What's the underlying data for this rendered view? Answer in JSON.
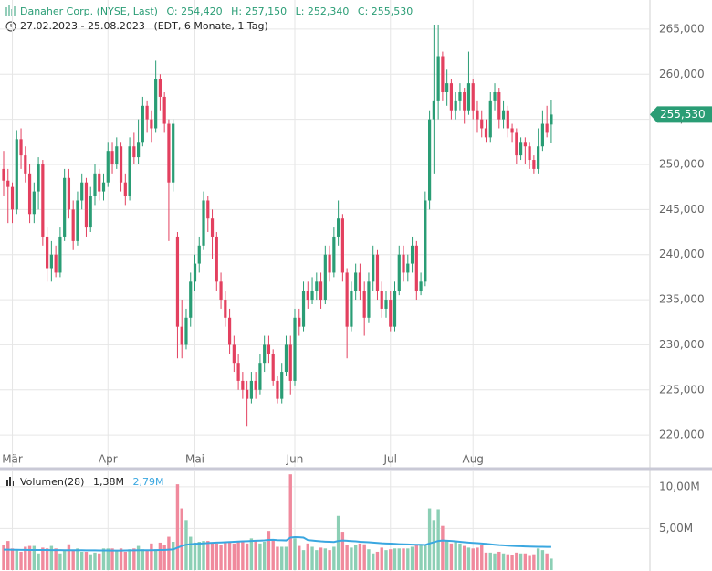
{
  "header": {
    "symbol": "Danaher Corp. (NYSE, Last)",
    "open": "O: 254,420",
    "high": "H: 257,150",
    "low": "L: 252,340",
    "close": "C: 255,530",
    "range": "27.02.2023 - 25.08.2023",
    "info": "(EDT, 6 Monate, 1 Tag)"
  },
  "chart_data": [
    {
      "type": "candlestick",
      "up_color": "#2a9d75",
      "down_color": "#e3405f",
      "grid": true,
      "xlim": [
        -0.84,
        148.7
      ],
      "ylim": [
        216.47,
        268.23
      ],
      "xticks": [
        {
          "value": 2,
          "label": "Mär"
        },
        {
          "value": 24,
          "label": "Apr"
        },
        {
          "value": 44,
          "label": "Mai"
        },
        {
          "value": 67,
          "label": "Jun"
        },
        {
          "value": 89,
          "label": "Jul"
        },
        {
          "value": 108,
          "label": "Aug"
        }
      ],
      "yticks": [
        {
          "value": 220,
          "label": "220,000"
        },
        {
          "value": 225,
          "label": "225,000"
        },
        {
          "value": 230,
          "label": "230,000"
        },
        {
          "value": 235,
          "label": "235,000"
        },
        {
          "value": 240,
          "label": "240,000"
        },
        {
          "value": 245,
          "label": "245,000"
        },
        {
          "value": 250,
          "label": "250,000"
        },
        {
          "value": 255,
          "label": "255,000"
        },
        {
          "value": 260,
          "label": "260,000"
        },
        {
          "value": 265,
          "label": "265,000"
        }
      ],
      "last": {
        "value": 255.53,
        "label": "255,530"
      },
      "candles": [
        [
          249.5,
          251.5,
          246.5,
          248.2
        ],
        [
          248.2,
          249.5,
          243.5,
          247.5
        ],
        [
          247.5,
          248,
          243.5,
          245
        ],
        [
          245,
          253.8,
          244.5,
          252.8
        ],
        [
          252.8,
          254,
          249.5,
          251
        ],
        [
          251,
          252,
          248,
          249
        ],
        [
          249,
          250,
          243.5,
          244.5
        ],
        [
          244.5,
          248,
          243.5,
          247
        ],
        [
          247,
          250.8,
          245,
          250
        ],
        [
          250,
          250.5,
          241,
          242
        ],
        [
          242,
          243,
          237,
          238.5
        ],
        [
          238.5,
          241.5,
          237,
          240
        ],
        [
          240,
          241,
          237.5,
          238
        ],
        [
          238,
          243,
          237.5,
          242
        ],
        [
          242,
          249.5,
          241.5,
          248.5
        ],
        [
          248.5,
          249.5,
          244,
          245
        ],
        [
          245,
          246,
          240.5,
          241.5
        ],
        [
          241.5,
          247,
          241,
          246
        ],
        [
          246,
          249,
          245,
          248
        ],
        [
          248,
          248.5,
          242,
          243
        ],
        [
          243,
          247.5,
          242.5,
          246.5
        ],
        [
          246.5,
          250,
          245.5,
          249
        ],
        [
          249,
          249.5,
          246,
          247
        ],
        [
          247,
          249,
          246,
          248
        ],
        [
          248,
          252.5,
          247.5,
          251.5
        ],
        [
          251.5,
          252.5,
          249,
          250
        ],
        [
          250,
          253,
          249.5,
          252
        ],
        [
          252,
          252.5,
          247,
          248
        ],
        [
          248,
          249,
          245.5,
          246.5
        ],
        [
          246.5,
          253,
          246,
          252
        ],
        [
          252,
          253.5,
          250,
          250.8
        ],
        [
          250.8,
          255,
          250,
          252.5
        ],
        [
          252.5,
          257.5,
          252,
          256.5
        ],
        [
          256.5,
          257,
          253.5,
          255
        ],
        [
          255,
          256,
          252.5,
          254
        ],
        [
          254,
          261.5,
          253.5,
          259.5
        ],
        [
          259.5,
          260,
          256,
          257.5
        ],
        [
          257.5,
          258,
          253.5,
          254.5
        ],
        [
          254.5,
          255,
          241.5,
          248
        ],
        [
          248,
          255,
          247,
          254.5
        ],
        [
          242,
          242.5,
          228.5,
          232
        ],
        [
          232,
          235,
          228.5,
          230
        ],
        [
          230,
          234,
          229.5,
          233
        ],
        [
          233,
          238,
          232,
          237
        ],
        [
          237,
          240,
          236,
          239
        ],
        [
          239,
          242,
          238,
          241
        ],
        [
          241,
          247,
          240.5,
          246
        ],
        [
          246,
          246.5,
          242.5,
          244
        ],
        [
          244,
          245,
          239.5,
          242
        ],
        [
          242,
          242.5,
          236,
          237
        ],
        [
          237,
          238,
          234,
          235
        ],
        [
          235,
          236,
          232,
          233
        ],
        [
          233,
          234,
          229,
          230
        ],
        [
          230,
          231,
          227,
          228
        ],
        [
          228,
          229,
          225,
          226
        ],
        [
          226,
          227,
          224,
          225
        ],
        [
          225,
          226,
          221,
          224
        ],
        [
          224,
          227,
          223.5,
          226
        ],
        [
          226,
          227,
          224,
          225
        ],
        [
          225,
          229,
          224.5,
          228
        ],
        [
          228,
          231,
          227,
          230
        ],
        [
          230,
          231,
          228,
          229
        ],
        [
          229,
          229.5,
          225.5,
          226
        ],
        [
          226,
          226.5,
          223.5,
          224
        ],
        [
          224,
          228,
          223.5,
          227
        ],
        [
          227,
          231,
          226.5,
          230
        ],
        [
          230,
          231,
          224.5,
          226
        ],
        [
          226,
          234,
          225.5,
          233
        ],
        [
          233,
          234,
          231,
          232
        ],
        [
          232,
          237,
          231.5,
          236
        ],
        [
          236,
          237,
          234,
          235
        ],
        [
          235,
          237.5,
          234.5,
          236
        ],
        [
          236,
          238,
          235,
          237
        ],
        [
          237,
          238,
          234,
          235
        ],
        [
          235,
          241,
          234.5,
          240
        ],
        [
          240,
          241,
          237,
          238
        ],
        [
          238,
          243,
          237.5,
          242
        ],
        [
          242,
          246,
          241,
          244
        ],
        [
          244,
          244.5,
          237,
          238
        ],
        [
          238,
          238.5,
          228.5,
          232
        ],
        [
          232,
          237,
          231.5,
          236
        ],
        [
          236,
          239,
          235,
          238
        ],
        [
          238,
          239,
          235,
          236
        ],
        [
          236,
          237,
          231,
          233
        ],
        [
          233,
          238,
          232.5,
          237
        ],
        [
          237,
          241,
          236,
          240
        ],
        [
          240,
          240.5,
          235,
          236
        ],
        [
          236,
          237,
          233,
          234
        ],
        [
          234,
          236,
          233,
          235
        ],
        [
          235,
          236,
          231.5,
          232
        ],
        [
          232,
          237,
          231.5,
          236
        ],
        [
          236,
          241,
          235.5,
          240
        ],
        [
          240,
          241,
          237,
          238
        ],
        [
          238,
          240,
          237,
          239
        ],
        [
          239,
          242,
          238,
          241
        ],
        [
          241,
          241.5,
          235,
          236
        ],
        [
          236,
          238,
          235.5,
          237
        ],
        [
          237,
          247,
          236.5,
          246
        ],
        [
          246,
          256,
          245,
          255
        ],
        [
          255,
          265.5,
          249,
          257
        ],
        [
          257,
          265.5,
          255,
          262
        ],
        [
          262,
          262.5,
          257,
          258
        ],
        [
          258,
          260.5,
          256.5,
          259
        ],
        [
          259,
          259.5,
          255,
          256
        ],
        [
          256,
          258,
          255,
          257
        ],
        [
          257,
          259,
          256,
          258
        ],
        [
          258,
          258.5,
          254.5,
          256
        ],
        [
          256,
          262.5,
          255.5,
          259
        ],
        [
          259,
          259.5,
          255,
          256
        ],
        [
          256,
          257,
          253.5,
          255
        ],
        [
          255,
          256,
          253,
          254
        ],
        [
          254,
          255,
          252.5,
          253
        ],
        [
          253,
          258,
          252.5,
          257
        ],
        [
          257,
          259,
          256,
          258
        ],
        [
          258,
          258.5,
          254,
          255
        ],
        [
          255,
          257,
          254,
          256
        ],
        [
          256,
          256.5,
          253,
          254
        ],
        [
          254,
          254.5,
          252.5,
          253.5
        ],
        [
          253.5,
          254,
          250,
          251
        ],
        [
          251,
          253,
          250.5,
          252.5
        ],
        [
          252.5,
          253,
          250,
          252
        ],
        [
          252,
          252.5,
          249.5,
          250.5
        ],
        [
          250.5,
          251,
          249,
          249.5
        ],
        [
          249.5,
          254,
          249,
          252
        ],
        [
          252,
          256,
          251.5,
          254.5
        ],
        [
          254.5,
          256.5,
          253,
          253.5
        ],
        [
          254.42,
          257.15,
          252.34,
          255.53
        ]
      ]
    },
    {
      "type": "volume",
      "legend": "Volumen(28)",
      "last_volume": "1,38M",
      "up_color": "#8ccfb5",
      "down_color": "#f08a9d",
      "grid": true,
      "xlim": [
        -0.84,
        148.7
      ],
      "ylim": [
        0,
        11.85
      ],
      "yticks": [
        {
          "value": 5,
          "label": "5,00M"
        },
        {
          "value": 10,
          "label": "10,00M"
        }
      ],
      "values": [
        3.0,
        3.5,
        2.6,
        2.4,
        2.2,
        2.8,
        2.9,
        2.9,
        2.0,
        2.7,
        2.6,
        2.9,
        2.6,
        2.0,
        2.3,
        3.1,
        2.4,
        2.6,
        2.2,
        2.2,
        1.9,
        2.1,
        2.0,
        2.6,
        2.6,
        2.6,
        2.3,
        2.6,
        2.2,
        2.5,
        2.6,
        2.9,
        2.5,
        2.3,
        3.2,
        2.5,
        3.3,
        3.0,
        4.0,
        3.4,
        10.3,
        7.4,
        6.0,
        4.0,
        3.3,
        3.4,
        3.5,
        3.5,
        3.3,
        3.2,
        3.0,
        3.4,
        3.4,
        3.2,
        3.5,
        3.5,
        3.2,
        3.8,
        3.5,
        3.2,
        3.4,
        4.7,
        3.6,
        2.8,
        2.8,
        2.8,
        11.5,
        3.8,
        2.9,
        2.4,
        3.2,
        2.8,
        2.4,
        2.7,
        2.6,
        2.4,
        2.8,
        6.5,
        4.6,
        3.0,
        2.7,
        3.0,
        3.2,
        3.1,
        2.5,
        2.0,
        2.2,
        2.7,
        2.4,
        2.5,
        2.6,
        2.6,
        2.6,
        2.6,
        2.8,
        3.0,
        3.1,
        3.0,
        7.4,
        6.0,
        7.3,
        5.3,
        3.5,
        3.2,
        3.4,
        3.2,
        2.9,
        2.7,
        2.6,
        2.7,
        3.0,
        2.1,
        2.1,
        2.0,
        2.2,
        2.0,
        1.9,
        1.8,
        2.1,
        2.0,
        2.0,
        1.7,
        1.9,
        2.6,
        2.4,
        2.0,
        1.38
      ],
      "series": [
        {
          "name": "2,79M",
          "color": "#3aa7e0",
          "values": [
            2.45,
            2.45,
            2.44,
            2.44,
            2.43,
            2.43,
            2.42,
            2.42,
            2.42,
            2.41,
            2.41,
            2.4,
            2.4,
            2.4,
            2.39,
            2.39,
            2.38,
            2.38,
            2.38,
            2.37,
            2.37,
            2.37,
            2.36,
            2.36,
            2.36,
            2.35,
            2.35,
            2.35,
            2.36,
            2.37,
            2.37,
            2.38,
            2.38,
            2.38,
            2.39,
            2.4,
            2.41,
            2.42,
            2.45,
            2.48,
            2.7,
            2.9,
            3.05,
            3.12,
            3.15,
            3.18,
            3.21,
            3.25,
            3.28,
            3.3,
            3.32,
            3.35,
            3.38,
            3.4,
            3.43,
            3.45,
            3.47,
            3.5,
            3.52,
            3.54,
            3.56,
            3.62,
            3.64,
            3.6,
            3.58,
            3.56,
            3.9,
            3.95,
            3.93,
            3.9,
            3.6,
            3.55,
            3.5,
            3.45,
            3.42,
            3.4,
            3.38,
            3.5,
            3.55,
            3.52,
            3.48,
            3.45,
            3.4,
            3.38,
            3.35,
            3.3,
            3.26,
            3.22,
            3.2,
            3.18,
            3.15,
            3.12,
            3.1,
            3.08,
            3.06,
            3.05,
            3.04,
            3.02,
            3.2,
            3.35,
            3.5,
            3.55,
            3.53,
            3.5,
            3.45,
            3.4,
            3.35,
            3.3,
            3.27,
            3.24,
            3.2,
            3.15,
            3.1,
            3.05,
            3.0,
            2.97,
            2.94,
            2.91,
            2.88,
            2.86,
            2.84,
            2.82,
            2.81,
            2.8,
            2.8,
            2.79,
            2.79
          ]
        }
      ]
    }
  ]
}
